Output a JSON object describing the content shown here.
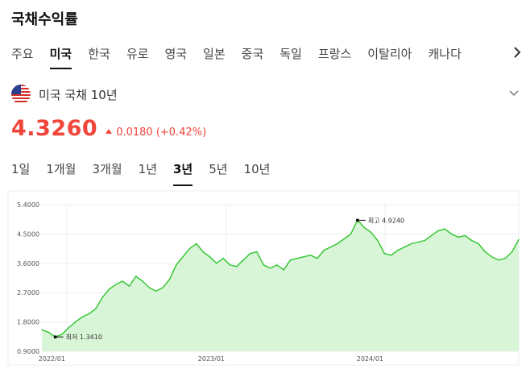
{
  "header": {
    "title": "국채수익률"
  },
  "tabs": [
    {
      "label": "주요",
      "active": false
    },
    {
      "label": "미국",
      "active": true
    },
    {
      "label": "한국",
      "active": false
    },
    {
      "label": "유로",
      "active": false
    },
    {
      "label": "영국",
      "active": false
    },
    {
      "label": "일본",
      "active": false
    },
    {
      "label": "중국",
      "active": false
    },
    {
      "label": "독일",
      "active": false
    },
    {
      "label": "프랑스",
      "active": false
    },
    {
      "label": "이탈리아",
      "active": false
    },
    {
      "label": "캐나다",
      "active": false
    }
  ],
  "tabs_next_icon": "chevron-right-icon",
  "bond": {
    "flag_icon": "us-flag-icon",
    "name": "미국 국채 10년",
    "dropdown_icon": "chevron-down-icon"
  },
  "quote": {
    "price": "4.3260",
    "change": "0.0180 (+0.42%)",
    "direction": "up",
    "color": "#f0453a"
  },
  "periods": [
    {
      "label": "1일",
      "active": false
    },
    {
      "label": "1개월",
      "active": false
    },
    {
      "label": "3개월",
      "active": false
    },
    {
      "label": "1년",
      "active": false
    },
    {
      "label": "3년",
      "active": true
    },
    {
      "label": "5년",
      "active": false
    },
    {
      "label": "10년",
      "active": false
    }
  ],
  "chart_data": {
    "type": "area",
    "title": "",
    "xlabel": "",
    "ylabel": "",
    "ylim": [
      0.9,
      5.4
    ],
    "yticks": [
      "5.4000",
      "4.5000",
      "3.6000",
      "2.7000",
      "1.8000",
      "0.9000"
    ],
    "xticks": [
      "2022/01",
      "2023/01",
      "2024/01"
    ],
    "grid": true,
    "line_color": "#2ec52e",
    "fill_color": "#d9f5d7",
    "max_label": "최고 4.9240",
    "min_label": "최저 1.3410",
    "series": [
      {
        "x": [
          "2021/11",
          "2021/11",
          "2021/12",
          "2021/12",
          "2022/01",
          "2022/01",
          "2022/02",
          "2022/02",
          "2022/03",
          "2022/03",
          "2022/04",
          "2022/04",
          "2022/05",
          "2022/05",
          "2022/06",
          "2022/06",
          "2022/07",
          "2022/07",
          "2022/08",
          "2022/08",
          "2022/09",
          "2022/09",
          "2022/10",
          "2022/10",
          "2022/11",
          "2022/11",
          "2022/12",
          "2022/12",
          "2023/01",
          "2023/01",
          "2023/02",
          "2023/02",
          "2023/03",
          "2023/03",
          "2023/04",
          "2023/04",
          "2023/05",
          "2023/05",
          "2023/06",
          "2023/06",
          "2023/07",
          "2023/07",
          "2023/08",
          "2023/08",
          "2023/09",
          "2023/09",
          "2023/10",
          "2023/10",
          "2023/11",
          "2023/11",
          "2023/12",
          "2023/12",
          "2024/01",
          "2024/01",
          "2024/02",
          "2024/02",
          "2024/03",
          "2024/03",
          "2024/04",
          "2024/04",
          "2024/05",
          "2024/05",
          "2024/06",
          "2024/06",
          "2024/07",
          "2024/07",
          "2024/08",
          "2024/08",
          "2024/09",
          "2024/09",
          "2024/10",
          "2024/10"
        ],
        "values": [
          1.56,
          1.48,
          1.34,
          1.42,
          1.63,
          1.8,
          1.95,
          2.05,
          2.2,
          2.55,
          2.8,
          2.95,
          3.05,
          2.9,
          3.2,
          3.05,
          2.85,
          2.75,
          2.85,
          3.1,
          3.55,
          3.8,
          4.05,
          4.2,
          3.95,
          3.8,
          3.6,
          3.75,
          3.55,
          3.5,
          3.7,
          3.9,
          3.95,
          3.55,
          3.45,
          3.55,
          3.4,
          3.7,
          3.75,
          3.8,
          3.85,
          3.75,
          4.0,
          4.1,
          4.2,
          4.35,
          4.5,
          4.92,
          4.7,
          4.55,
          4.3,
          3.9,
          3.85,
          4.0,
          4.1,
          4.2,
          4.25,
          4.3,
          4.45,
          4.6,
          4.65,
          4.5,
          4.4,
          4.45,
          4.3,
          4.2,
          3.95,
          3.8,
          3.7,
          3.75,
          3.95,
          4.33
        ]
      }
    ]
  }
}
